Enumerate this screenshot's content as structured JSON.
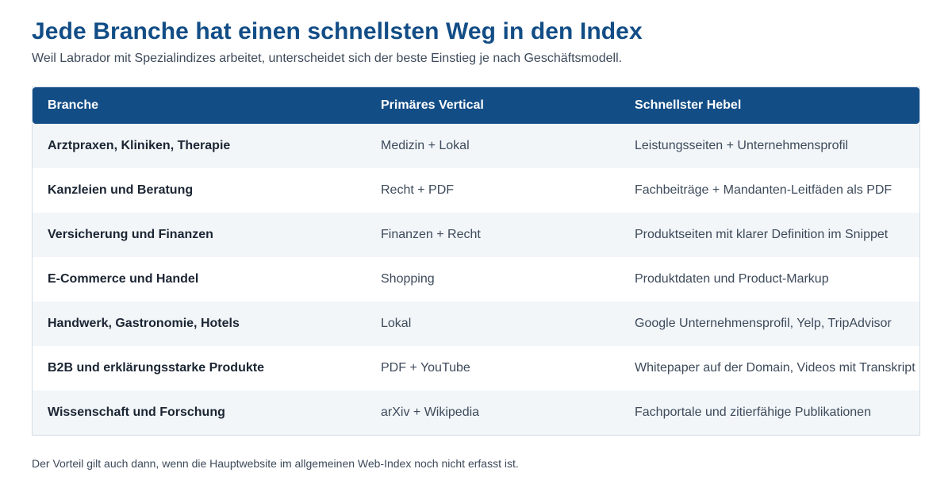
{
  "header": {
    "title": "Jede Branche hat einen schnellsten Weg in den Index",
    "subtitle": "Weil Labrador mit Spezialindizes arbeitet, unterscheidet sich der beste Einstieg je nach Geschäftsmodell."
  },
  "table": {
    "columns": [
      "Branche",
      "Primäres Vertical",
      "Schnellster Hebel"
    ],
    "rows": [
      [
        "Arztpraxen, Kliniken, Therapie",
        "Medizin + Lokal",
        "Leistungsseiten + Unternehmensprofil"
      ],
      [
        "Kanzleien und Beratung",
        "Recht + PDF",
        "Fachbeiträge + Mandanten-Leitfäden als PDF"
      ],
      [
        "Versicherung und Finanzen",
        "Finanzen + Recht",
        "Produktseiten mit klarer Definition im Snippet"
      ],
      [
        "E-Commerce und Handel",
        "Shopping",
        "Produktdaten und Product-Markup"
      ],
      [
        "Handwerk, Gastronomie, Hotels",
        "Lokal",
        "Google Unternehmensprofil, Yelp, TripAdvisor"
      ],
      [
        "B2B und erklärungsstarke Produkte",
        "PDF + YouTube",
        "Whitepaper auf der Domain, Videos mit Transkript"
      ],
      [
        "Wissenschaft und Forschung",
        "arXiv + Wikipedia",
        "Fachportale und zitierfähige Publikationen"
      ]
    ]
  },
  "footer": {
    "note": "Der Vorteil gilt auch dann, wenn die Hauptwebsite im allgemeinen Web-Index noch nicht erfasst ist."
  },
  "colors": {
    "accent": "#124d86",
    "row_alt": "#f2f6f9",
    "border": "#d3dde8"
  }
}
